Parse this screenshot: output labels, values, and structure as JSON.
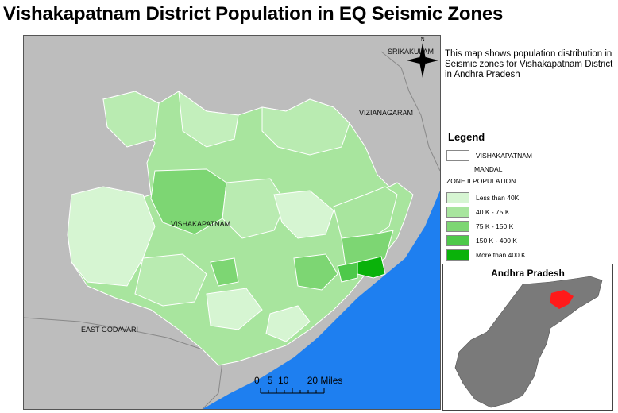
{
  "title": "Vishakapatnam District Population in EQ Seismic Zones",
  "description": "This map shows population distribution in Seismic zones for Vishakapatnam District in Andhra Pradesh",
  "map": {
    "labels": {
      "srikakulam": "SRIKAKULAM",
      "vizianagaram": "VIZIANAGARAM",
      "vishakapatnam": "VISHAKAPATNAM",
      "east_godavari": "EAST GODAVARI"
    },
    "north_label": "N",
    "scale_text": "0   5  10       20 Miles",
    "colors": {
      "land": "#bdbdbd",
      "sea": "#1e7ff0",
      "less_than_40k": "#d6f5d2",
      "k40_75": "#a8e59e",
      "k75_150": "#7dd673",
      "k150_400": "#4ec94a",
      "more_than_400k": "#0ab20a"
    }
  },
  "legend": {
    "title": "Legend",
    "district_label": "VISHAKAPATNAM",
    "mandal_label": "MANDAL",
    "zone_heading": "ZONE II POPULATION",
    "items": [
      {
        "label": "Less than 40K",
        "color": "#d6f5d2"
      },
      {
        "label": "40 K - 75 K",
        "color": "#a8e59e"
      },
      {
        "label": "75 K - 150 K",
        "color": "#7dd673"
      },
      {
        "label": "150 K - 400 K",
        "color": "#4ec94a"
      },
      {
        "label": "More than 400 K",
        "color": "#0ab20a"
      }
    ]
  },
  "inset": {
    "title": "Andhra Pradesh",
    "state_color": "#7a7a7a",
    "highlight_color": "#ff1a1a"
  }
}
